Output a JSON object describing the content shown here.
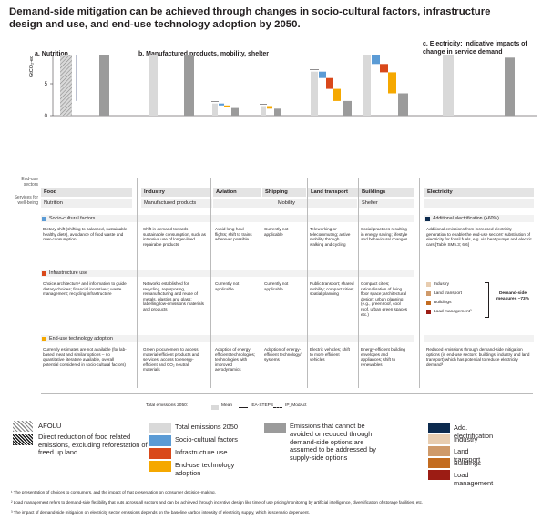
{
  "title": "Demand-side mitigation can be achieved through changes in socio-cultural factors, infrastructure design and use, and end-use technology adoption by 2050.",
  "panels": {
    "a": "a. Nutrition",
    "b": "b. Manufactured products, mobility, shelter",
    "c": "c. Electricity: indicative impacts of change in service demand"
  },
  "ylabel": "GtCO₂-eq yr⁻¹",
  "yticks": [
    "0",
    "5",
    "10",
    "15"
  ],
  "human_settlements": "Human settlements",
  "enduse_label": "End-use sectors",
  "services_label": "Services for well-being",
  "sectors": [
    "Food",
    "Industry",
    "Aviation",
    "Shipping",
    "Land transport",
    "Buildings",
    "Electricity"
  ],
  "services": [
    "Nutrition",
    "Manufactured products",
    "Mobility",
    "Shelter"
  ],
  "rows": {
    "socio": {
      "title": "Socio-cultural factors",
      "food": "Dietary shift (shifting to balanced, sustainable healthy diets), avoidance of food waste and over-consumption",
      "industry": "Shift in demand towards sustainable consumption, such as intensive use of longer-lived repairable products",
      "aviation": "Avoid long-haul flights; shift to trains wherever possible",
      "shipping": "Currently not applicable",
      "land": "Teleworking or telecommuting; active mobility through walking and cycling",
      "buildings": "Social practices resulting in energy saving; lifestyle and behavioural changes",
      "electricity_tag": "Additional electrification (+60%)",
      "electricity": "Additional emissions from increased electricity generation to enable the end-use sectors' substitution of electricity for fossil fuels, e.g. via heat pumps and electric cars [Table SM5.3; 6.6]"
    },
    "infra": {
      "title": "Infrastructure use",
      "food": "Choice architecture¹ and information to guide dietary choices; financial incentives; waste management; recycling infrastructure",
      "industry": "Networks established for recycling, repurposing, remanufacturing and reuse of metals, plastics and glass; labelling low-emissions materials and products",
      "aviation": "Currently not applicable",
      "shipping": "Currently not applicable",
      "land": "Public transport; shared mobility; compact cities; spatial planning",
      "buildings": "Compact cities; rationalisation of living floor space; architectural design; urban planning (e.g., green roof, cool roof, urban green spaces etc.)",
      "electricity_items": [
        "Industry",
        "Land transport",
        "Buildings",
        "Load management²"
      ],
      "measures": "Demand-side measures –73%"
    },
    "tech": {
      "title": "End-use technology adoption",
      "food": "Currently estimates are not available (for lab-based meat and similar options – no quantitative literature available, overall potential considered in socio-cultural factors)",
      "industry": "Green procurement to access material-efficient products and services; access to energy-efficient and CO₂ neutral materials",
      "aviation": "Adoption of energy-efficient technologies; technologies with improved aerodynamics",
      "shipping": "Adoption of energy-efficient technology/ systems",
      "land": "Electric vehicles; shift to more efficient vehicles",
      "buildings": "Energy-efficient building envelopes and appliances; shift to renewables",
      "electricity": "Reduced emissions through demand-side mitigation options (in end-use sectors: buildings, industry and land transport) which has potential to reduce electricity demand³"
    }
  },
  "totals_line": "Total emissions 2050:",
  "totals_legend": [
    "Mean",
    "IEA-STEPS",
    "IP_ModAct"
  ],
  "legend": {
    "afolu": "AFOLU",
    "food_reduction": "Direct reduction of food related emissions, excluding reforestation of freed up land",
    "total": "Total emissions 2050",
    "socio": "Socio-cultural factors",
    "infra": "Infrastructure use",
    "tech": "End-use technology adoption",
    "residual": "Emissions that cannot be avoided or reduced through demand-side options are assumed to be addressed by supply-side options",
    "electrification": "Add. electrification",
    "industry": "Industry",
    "land": "Land transport",
    "buildings": "Buildings",
    "load": "Load management"
  },
  "footnotes": [
    "¹ The presentation of choices to consumers, and the impact of that presentation on consumer decision-making.",
    "² Load management refers to demand-side flexibility that cuts across all sectors and can be achieved through incentive design like time of use pricing/monitoring by artificial intelligence, diversification of storage facilities, etc.",
    "³ The impact of demand-side mitigation on electricity sector emissions depends on the baseline carbon intensity of electricity supply, which is scenario dependent."
  ],
  "colors": {
    "total": "#d9d9d9",
    "socio": "#5b9bd5",
    "infra": "#d9481a",
    "tech": "#f5a800",
    "residual": "#9b9b9b",
    "elec": "#0d2b4f",
    "ind": "#e8cdb0",
    "land": "#cf9a6a",
    "bld": "#c36c20",
    "load": "#9c1c14"
  },
  "chart_data": {
    "type": "bar",
    "ylabel": "GtCO₂-eq yr⁻¹",
    "ylim": [
      0,
      17
    ],
    "series": [
      {
        "name": "Food",
        "total": 16.5,
        "socio": [
          16.5,
          12.8
        ],
        "infra": [
          12.8,
          10.8
        ],
        "tech": null,
        "residual": 10.0
      },
      {
        "name": "Industry",
        "total": 15.6,
        "socio": [
          15.6,
          14.6
        ],
        "infra": [
          14.6,
          13.5
        ],
        "tech": [
          13.5,
          10.8
        ],
        "residual": 10.8
      },
      {
        "name": "Aviation",
        "total": 1.9,
        "socio": [
          1.9,
          1.6
        ],
        "infra": null,
        "tech": [
          1.6,
          1.4
        ],
        "residual": 1.2
      },
      {
        "name": "Shipping",
        "total": 1.5,
        "socio": null,
        "infra": null,
        "tech": [
          1.5,
          1.1
        ],
        "residual": 1.1
      },
      {
        "name": "Land transport",
        "total": 6.9,
        "socio": [
          6.9,
          5.9
        ],
        "infra": [
          5.9,
          4.2
        ],
        "tech": [
          4.2,
          2.3
        ],
        "residual": 2.3
      },
      {
        "name": "Buildings",
        "total": 10.2,
        "socio": [
          10.2,
          8.1
        ],
        "infra": [
          8.1,
          6.8
        ],
        "tech": [
          6.8,
          3.5
        ],
        "residual": 3.5
      },
      {
        "name": "Electricity",
        "total": 10.5,
        "electrification": [
          10.5,
          16.9
        ],
        "industry": [
          16.9,
          15.2
        ],
        "land_transport": [
          15.2,
          13.6
        ],
        "buildings": [
          13.6,
          11.2
        ],
        "load_management": [
          11.2,
          10.0
        ],
        "residual": 9.1
      }
    ]
  }
}
